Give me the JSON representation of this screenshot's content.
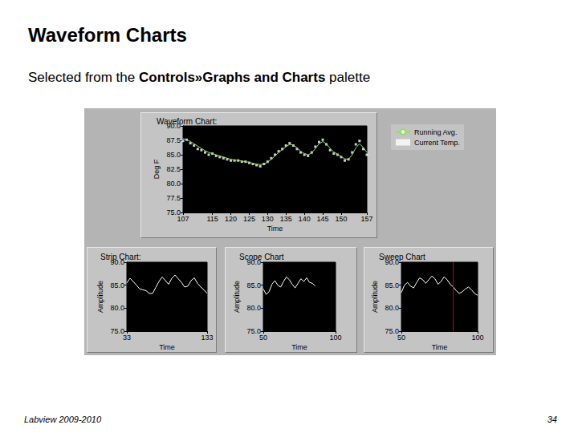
{
  "slide": {
    "title": "Waveform Charts",
    "subtitle": {
      "text": "Selected from the Controls»Graphs and Charts palette",
      "bold": "Controls»Graphs and Charts"
    },
    "footer": "Labview 2009-2010",
    "page": 34
  },
  "chart_data": [
    {
      "type": "line",
      "title": "Waveform Chart:",
      "x_label": "Time",
      "y_label": "Deg F",
      "x": [
        107,
        108,
        109,
        110,
        111,
        112,
        113,
        114,
        115,
        116,
        117,
        118,
        119,
        120,
        121,
        122,
        123,
        124,
        125,
        126,
        127,
        128,
        129,
        130,
        131,
        132,
        133,
        134,
        135,
        136,
        137,
        138,
        139,
        140,
        141,
        142,
        143,
        144,
        145,
        146,
        147,
        148,
        149,
        150,
        151,
        152,
        153,
        154,
        155,
        156,
        157
      ],
      "series": [
        {
          "name": "Running Avg.",
          "type": "line",
          "line_style": "solid",
          "color": "#8ee05a",
          "values": [
            87.8,
            87.6,
            87.3,
            86.9,
            86.5,
            86.1,
            85.7,
            85.4,
            85.2,
            85.0,
            84.8,
            84.6,
            84.4,
            84.2,
            84.1,
            84.0,
            83.9,
            83.8,
            83.7,
            83.5,
            83.4,
            83.3,
            83.4,
            83.7,
            84.2,
            84.8,
            85.4,
            85.9,
            86.4,
            86.8,
            86.7,
            86.2,
            85.6,
            85.2,
            85.0,
            85.3,
            86.1,
            86.9,
            87.3,
            86.9,
            86.1,
            85.5,
            85.1,
            84.7,
            84.3,
            84.2,
            85.0,
            86.2,
            86.9,
            86.3,
            85.4
          ]
        },
        {
          "name": "Current Temp.",
          "type": "scatter",
          "marker": "square",
          "color": "#ffffff",
          "values": [
            87.4,
            87.6,
            87.0,
            86.6,
            86.0,
            85.8,
            85.4,
            85.0,
            85.2,
            84.8,
            84.6,
            84.4,
            84.2,
            84.0,
            84.0,
            84.0,
            83.8,
            83.8,
            83.6,
            83.4,
            83.2,
            83.0,
            83.4,
            83.8,
            84.4,
            85.0,
            85.6,
            86.0,
            86.6,
            87.0,
            86.6,
            86.0,
            85.4,
            85.0,
            84.8,
            85.4,
            86.4,
            87.2,
            87.6,
            86.8,
            85.8,
            85.2,
            85.0,
            84.6,
            84.0,
            84.2,
            85.4,
            86.8,
            87.4,
            86.0,
            85.0
          ]
        }
      ],
      "xlim": [
        107,
        157
      ],
      "xticks": [
        107,
        115,
        120,
        125,
        130,
        135,
        140,
        145,
        150,
        157
      ],
      "ylim": [
        75,
        90
      ],
      "yticks": [
        {
          "value": 75,
          "label": "75.0"
        },
        {
          "value": 77.5,
          "label": "77.5"
        },
        {
          "value": 80,
          "label": "80.0"
        },
        {
          "value": 82.5,
          "label": "82.5"
        },
        {
          "value": 85,
          "label": "85.0"
        },
        {
          "value": 87.5,
          "label": "87.5"
        },
        {
          "value": 90,
          "label": "90.0"
        }
      ],
      "grid": false,
      "legend": "right"
    },
    {
      "type": "line",
      "title": "Strip Chart:",
      "x_label": "Time",
      "y_label": "Amplitude",
      "x": [
        33,
        37,
        41,
        45,
        49,
        53,
        57,
        61,
        65,
        69,
        73,
        77,
        81,
        85,
        89,
        93,
        97,
        101,
        105,
        109,
        113,
        117,
        121,
        125,
        129,
        133
      ],
      "series": [
        {
          "color": "#ffffff",
          "line_style": "solid",
          "values": [
            85.5,
            86.5,
            85.8,
            85.0,
            84.2,
            84.0,
            83.8,
            83.2,
            83.2,
            84.5,
            85.8,
            86.8,
            86.0,
            85.2,
            86.5,
            87.2,
            86.4,
            85.6,
            84.6,
            84.8,
            86.0,
            86.6,
            85.4,
            84.6,
            84.0,
            83.2
          ]
        }
      ],
      "xlim": [
        33,
        133
      ],
      "xticks": [
        33,
        133
      ],
      "ylim": [
        75,
        90
      ],
      "yticks": [
        {
          "value": 75,
          "label": "75.0"
        },
        {
          "value": 80,
          "label": "80.0"
        },
        {
          "value": 85,
          "label": "85.0"
        },
        {
          "value": 90,
          "label": "90.0"
        }
      ],
      "grid": false
    },
    {
      "type": "line",
      "title": "Scope Chart",
      "x_label": "Time",
      "y_label": "Amplitude",
      "x": [
        50,
        52,
        54,
        56,
        58,
        60,
        62,
        64,
        66,
        68,
        70,
        72,
        74,
        76,
        78,
        80,
        82,
        84,
        86
      ],
      "series": [
        {
          "color": "#ffffff",
          "line_style": "solid",
          "values": [
            84.2,
            83.0,
            83.6,
            85.2,
            86.0,
            85.0,
            84.6,
            85.8,
            86.8,
            86.2,
            85.2,
            84.4,
            85.4,
            86.4,
            85.8,
            86.6,
            85.6,
            85.4,
            84.8
          ]
        }
      ],
      "xlim": [
        50,
        100
      ],
      "xticks": [
        50,
        100
      ],
      "ylim": [
        75,
        90
      ],
      "yticks": [
        {
          "value": 75,
          "label": "75.0"
        },
        {
          "value": 80,
          "label": "80.0"
        },
        {
          "value": 85,
          "label": "85.0"
        },
        {
          "value": 90,
          "label": "90.0"
        }
      ],
      "grid": false
    },
    {
      "type": "line",
      "title": "Sweep Chart",
      "x_label": "Time",
      "y_label": "Amplitude",
      "x": [
        50,
        52,
        54,
        56,
        58,
        60,
        62,
        64,
        66,
        68,
        70,
        72,
        74,
        76,
        78,
        80,
        82,
        84,
        86,
        88,
        90,
        92,
        94,
        96,
        98,
        100
      ],
      "series": [
        {
          "color": "#ffffff",
          "line_style": "solid",
          "values": [
            83.4,
            85.0,
            85.6,
            84.8,
            84.4,
            85.6,
            86.6,
            86.2,
            85.4,
            86.2,
            87.0,
            86.4,
            85.2,
            85.8,
            86.8,
            86.2,
            85.2,
            84.6,
            83.8,
            83.2,
            83.6,
            84.2,
            84.6,
            84.0,
            83.2,
            82.8
          ]
        }
      ],
      "cursor": 84,
      "xlim": [
        50,
        100
      ],
      "xticks": [
        50,
        100
      ],
      "ylim": [
        75,
        90
      ],
      "yticks": [
        {
          "value": 75,
          "label": "75.0"
        },
        {
          "value": 80,
          "label": "80.0"
        },
        {
          "value": 85,
          "label": "85.0"
        },
        {
          "value": 90,
          "label": "90.0"
        }
      ],
      "grid": false
    }
  ]
}
